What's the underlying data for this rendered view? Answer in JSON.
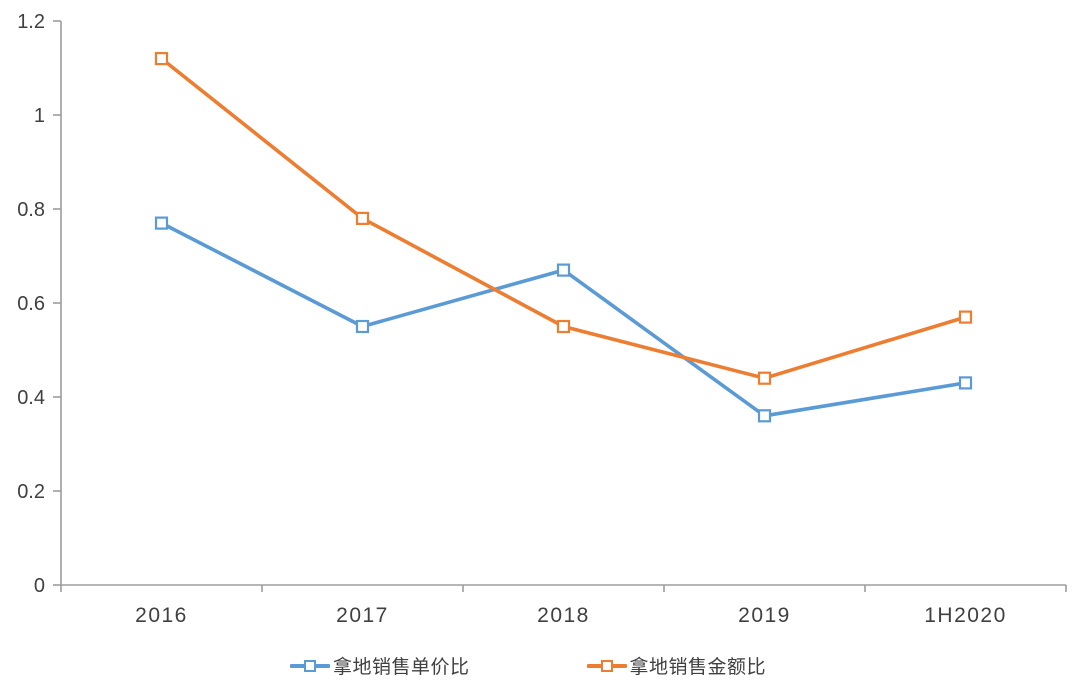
{
  "chart_data": {
    "type": "line",
    "title": "",
    "xlabel": "",
    "ylabel": "",
    "categories": [
      "2016",
      "2017",
      "2018",
      "2019",
      "1H2020"
    ],
    "series": [
      {
        "name": "拿地销售单价比",
        "color": "#5B9BD5",
        "values": [
          0.77,
          0.55,
          0.67,
          0.36,
          0.43
        ]
      },
      {
        "name": "拿地销售金额比",
        "color": "#ED7D31",
        "values": [
          1.12,
          0.78,
          0.55,
          0.44,
          0.57
        ]
      }
    ],
    "ylim": [
      0,
      1.2
    ],
    "ytick_step": 0.2,
    "ytick_labels": [
      "0",
      "0.2",
      "0.4",
      "0.6",
      "0.8",
      "1",
      "1.2"
    ],
    "grid": false,
    "legend_position": "bottom",
    "marker": "open-square",
    "axis_color": "#9d9d9d",
    "label_color": "#404040"
  }
}
